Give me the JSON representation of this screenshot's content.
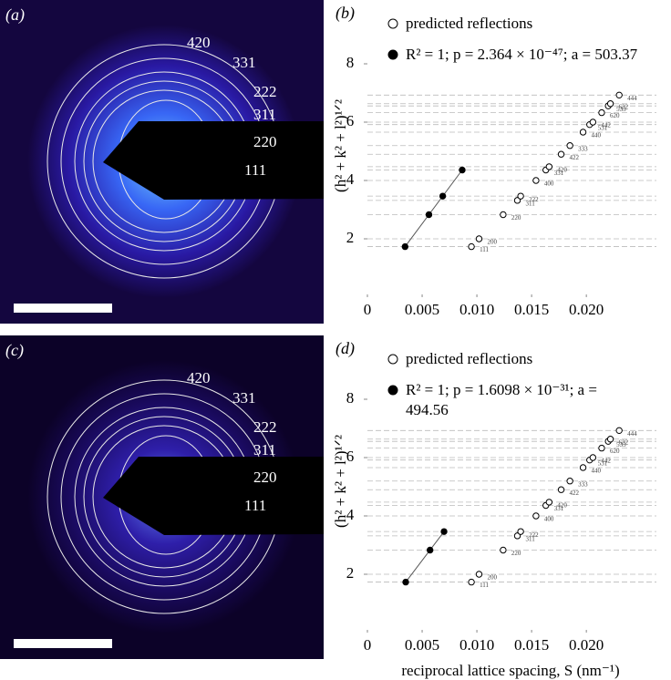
{
  "images": [
    {
      "label": "(a)",
      "rings": [
        "420",
        "331",
        "222",
        "311",
        "220",
        "111"
      ]
    },
    {
      "label": "(c)",
      "rings": [
        "420",
        "331",
        "222",
        "311",
        "220",
        "111"
      ]
    }
  ],
  "chart_data": [
    {
      "type": "scatter",
      "panel": "(b)",
      "ylabel": "(h² + k² + l²)¹ᐟ²",
      "xlim": [
        0,
        0.0264
      ],
      "ylim": [
        0,
        10
      ],
      "xticks": [
        0,
        0.005,
        {
          "value": 0.01,
          "label": "0.010"
        },
        0.015,
        {
          "value": 0.02,
          "label": "0.020"
        }
      ],
      "yticks": [
        2,
        4,
        6,
        8
      ],
      "series": [
        {
          "name": "predicted reflections",
          "marker": "open",
          "color": "#000000",
          "x": [
            0.0095,
            0.0102,
            0.0124,
            0.0137,
            0.014,
            0.0154,
            0.0163,
            0.0166,
            0.0177,
            0.0185,
            0.0197,
            0.0203,
            0.0206,
            0.0214,
            0.022,
            0.0222,
            0.023
          ],
          "values": [
            1.732,
            2,
            2.828,
            3.317,
            3.464,
            4,
            4.359,
            4.472,
            4.899,
            5.196,
            5.657,
            5.916,
            6,
            6.325,
            6.557,
            6.633,
            6.928
          ],
          "labels": [
            "111",
            "200",
            "220",
            "311",
            "222",
            "400",
            "331",
            "420",
            "422",
            "333",
            "440",
            "531",
            "442",
            "620",
            "533",
            "622",
            "444"
          ]
        },
        {
          "name": "R² = 1; p = 2.364 × 10⁻⁴⁷; a = 503.37",
          "marker": "filled",
          "color": "#000000",
          "x": [
            0.00344,
            0.00562,
            0.00688,
            0.00866
          ],
          "values": [
            1.732,
            2.828,
            3.464,
            4.359
          ]
        }
      ]
    },
    {
      "type": "scatter",
      "panel": "(d)",
      "ylabel": "(h² + k² + l²)¹ᐟ²",
      "xlabel": "reciprocal lattice spacing, S (nm⁻¹)",
      "xlim": [
        0,
        0.0264
      ],
      "ylim": [
        0,
        10
      ],
      "xticks": [
        0,
        0.005,
        {
          "value": 0.01,
          "label": "0.010"
        },
        0.015,
        {
          "value": 0.02,
          "label": "0.020"
        }
      ],
      "yticks": [
        2,
        4,
        6,
        8
      ],
      "series": [
        {
          "name": "predicted reflections",
          "marker": "open",
          "color": "#000000",
          "x": [
            0.0095,
            0.0102,
            0.0124,
            0.0137,
            0.014,
            0.0154,
            0.0163,
            0.0166,
            0.0177,
            0.0185,
            0.0197,
            0.0203,
            0.0206,
            0.0214,
            0.022,
            0.0222,
            0.023
          ],
          "values": [
            1.732,
            2,
            2.828,
            3.317,
            3.464,
            4,
            4.359,
            4.472,
            4.899,
            5.196,
            5.657,
            5.916,
            6,
            6.325,
            6.557,
            6.633,
            6.928
          ],
          "labels": [
            "111",
            "200",
            "220",
            "311",
            "222",
            "400",
            "331",
            "420",
            "422",
            "333",
            "440",
            "531",
            "442",
            "620",
            "533",
            "622",
            "444"
          ]
        },
        {
          "name": "R² = 1; p = 1.6098 × 10⁻³¹; a = 494.56",
          "marker": "filled",
          "color": "#000000",
          "x": [
            0.0035,
            0.00572,
            0.007
          ],
          "values": [
            1.732,
            2.828,
            3.464
          ]
        }
      ]
    }
  ]
}
